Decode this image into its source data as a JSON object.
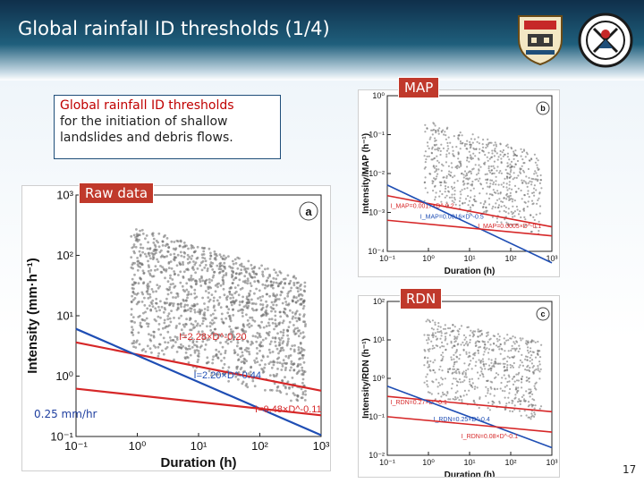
{
  "slide": {
    "title": "Global rainfall ID thresholds (1/4)",
    "caption_line1": "Global rainfall ID thresholds",
    "caption_line2": "for the initiation of shallow landslides and debris flows.",
    "tag_raw": "Raw data",
    "tag_map": "MAP",
    "tag_rdn": "RDN",
    "note_rate": "0.25 mm/hr",
    "page_number": "17"
  },
  "colors": {
    "threshold_red": "#d62728",
    "threshold_blue": "#1f4eb4",
    "tag_red": "#c0392b",
    "points": "#555555"
  },
  "chart_data": [
    {
      "type": "scatter",
      "panel_label": "a",
      "xlabel": "Duration (h)",
      "ylabel": "Intensity (mm·h⁻¹)",
      "x_scale": "log",
      "y_scale": "log",
      "xlim": [
        0.1,
        1000
      ],
      "ylim": [
        0.1,
        1000
      ],
      "x_ticks": [
        "10⁻¹",
        "10⁰",
        "10¹",
        "10²",
        "10³"
      ],
      "y_ticks": [
        "10⁻¹",
        "10⁰",
        "10¹",
        "10²",
        "10³"
      ],
      "series": [
        {
          "label": "I=2.28×D^-0.20",
          "coef": 2.28,
          "exp": -0.2,
          "color": "#d62728"
        },
        {
          "label": "I=2.20×D^-0.44",
          "coef": 2.2,
          "exp": -0.44,
          "color": "#1f4eb4"
        },
        {
          "label": "I=0.48×D^-0.11",
          "coef": 0.48,
          "exp": -0.11,
          "color": "#d62728"
        }
      ]
    },
    {
      "type": "scatter",
      "panel_label": "b",
      "xlabel": "Duration (h)",
      "ylabel": "Intensity/MAP (h⁻¹)",
      "x_scale": "log",
      "y_scale": "log",
      "xlim": [
        0.1,
        1000
      ],
      "ylim": [
        0.0001,
        1
      ],
      "x_ticks": [
        "10⁻¹",
        "10⁰",
        "10¹",
        "10²",
        "10³"
      ],
      "y_ticks": [
        "10⁻⁴",
        "10⁻³",
        "10⁻²",
        "10⁻¹",
        "10⁰"
      ],
      "series": [
        {
          "label": "I_MAP=0.0017×D^-0.2",
          "coef": 0.0017,
          "exp": -0.2,
          "color": "#d62728"
        },
        {
          "label": "I_MAP=0.0016×D^-0.5",
          "coef": 0.0016,
          "exp": -0.5,
          "color": "#1f4eb4"
        },
        {
          "label": "I_MAP=0.0005×D^-0.1",
          "coef": 0.0005,
          "exp": -0.1,
          "color": "#d62728"
        }
      ]
    },
    {
      "type": "scatter",
      "panel_label": "c",
      "xlabel": "Duration (h)",
      "ylabel": "Intensity/RDN (h⁻¹)",
      "x_scale": "log",
      "y_scale": "log",
      "xlim": [
        0.1,
        1000
      ],
      "ylim": [
        0.01,
        100
      ],
      "x_ticks": [
        "10⁻¹",
        "10⁰",
        "10¹",
        "10²",
        "10³"
      ],
      "y_ticks": [
        "10⁻²",
        "10⁻¹",
        "10⁰",
        "10¹",
        "10²"
      ],
      "series": [
        {
          "label": "I_RDN=0.27×D^-0.1",
          "coef": 0.27,
          "exp": -0.1,
          "color": "#d62728"
        },
        {
          "label": "I_RDN=0.25×D^-0.4",
          "coef": 0.25,
          "exp": -0.4,
          "color": "#1f4eb4"
        },
        {
          "label": "I_RDN=0.08×D^-0.1",
          "coef": 0.08,
          "exp": -0.1,
          "color": "#d62728"
        }
      ]
    }
  ]
}
